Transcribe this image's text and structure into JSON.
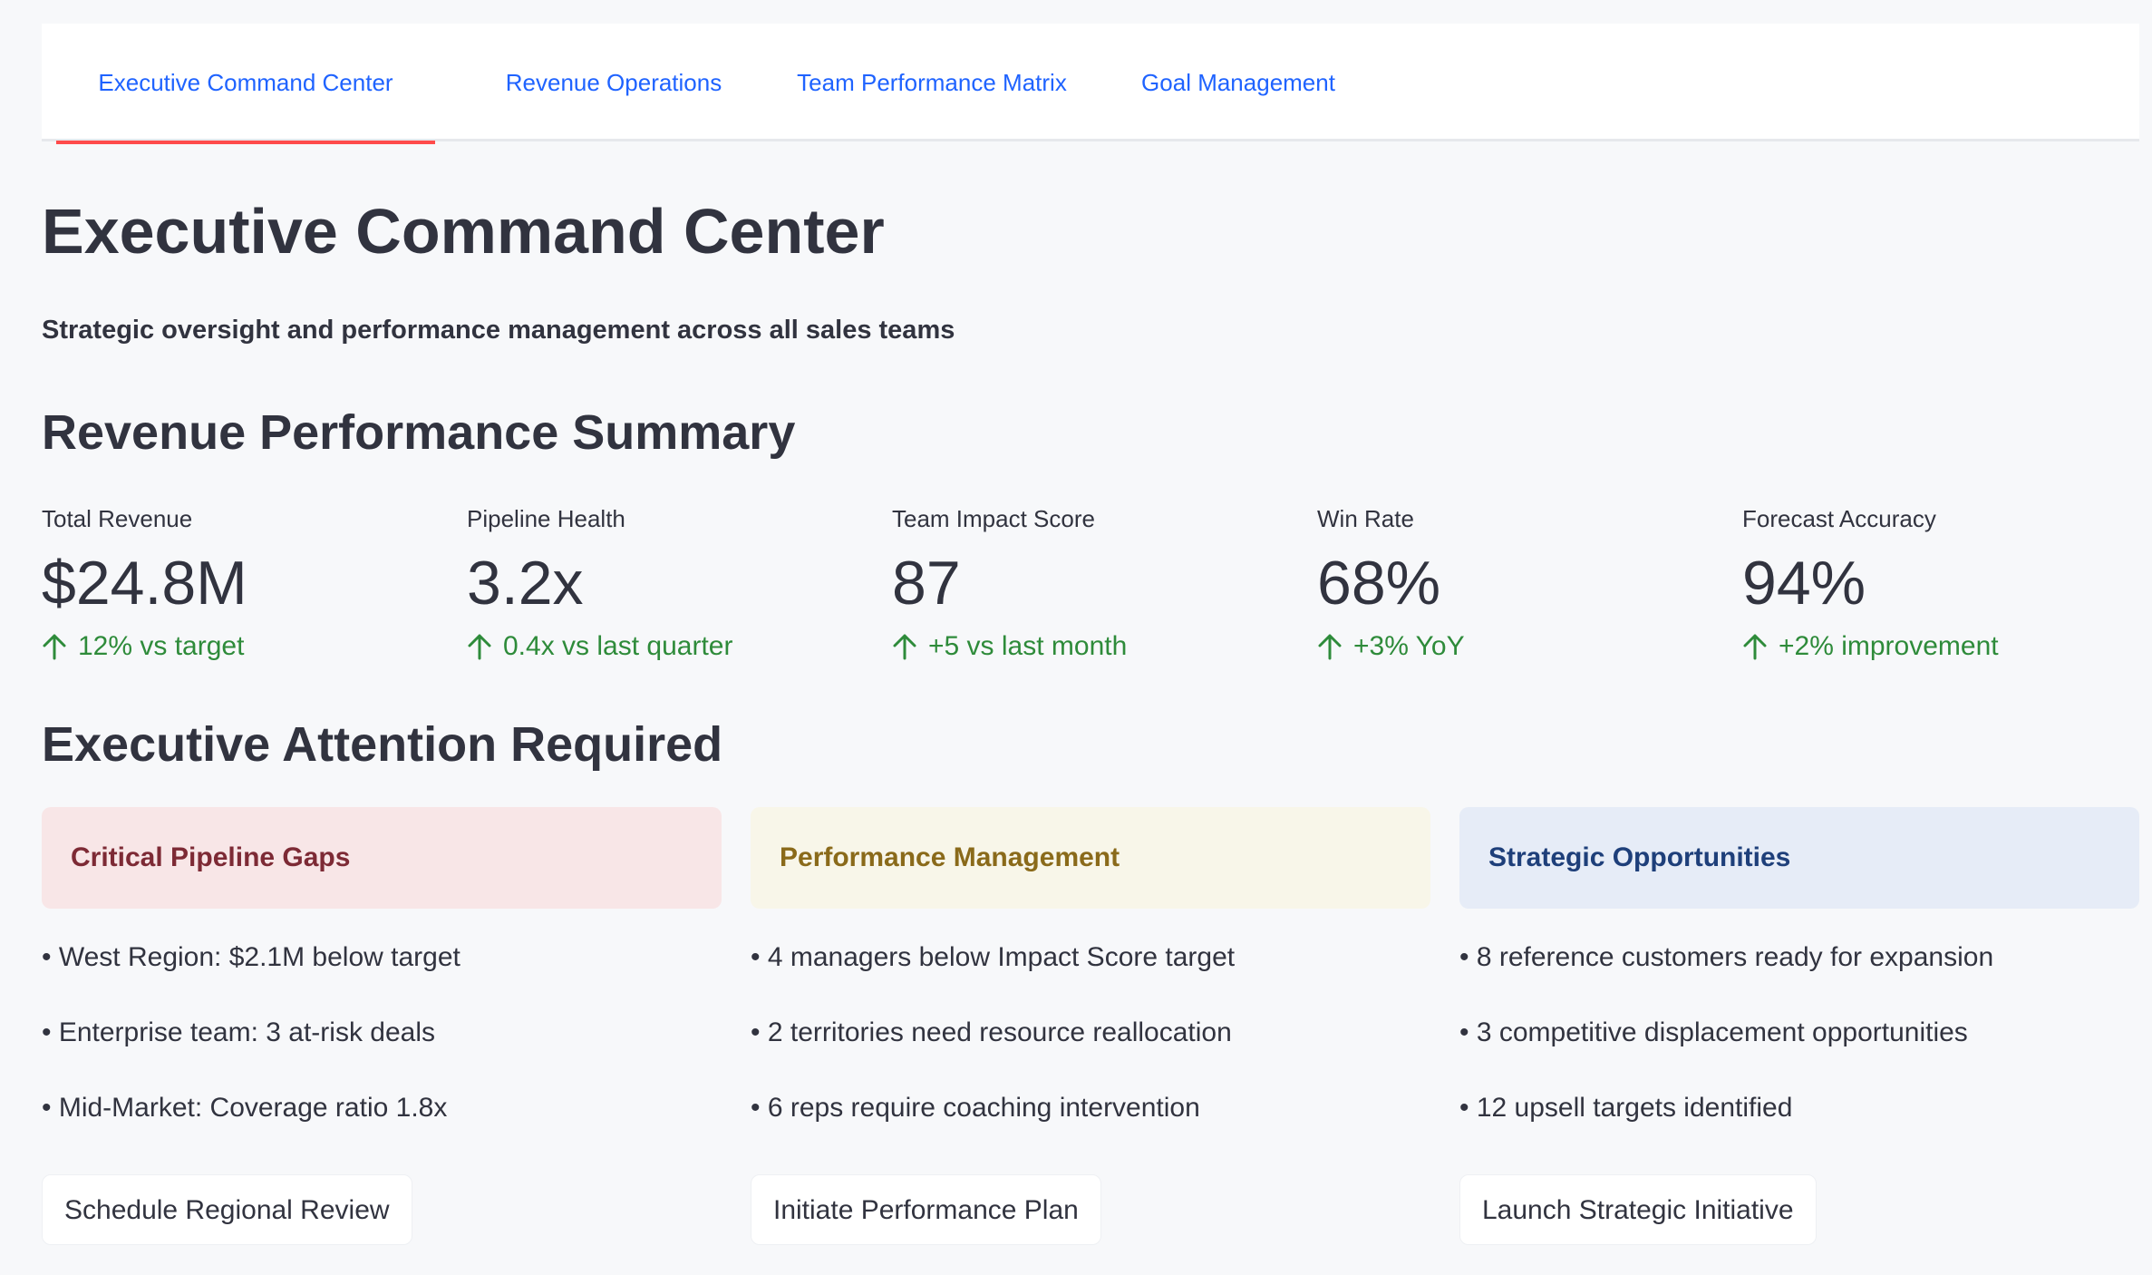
{
  "tabs": [
    {
      "label": "Executive Command Center",
      "active": true
    },
    {
      "label": "Revenue Operations",
      "active": false
    },
    {
      "label": "Team Performance Matrix",
      "active": false
    },
    {
      "label": "Goal Management",
      "active": false
    }
  ],
  "header": {
    "title": "Executive Command Center",
    "subtitle": "Strategic oversight and performance management across all sales teams"
  },
  "summary": {
    "title": "Revenue Performance Summary",
    "metrics": [
      {
        "label": "Total Revenue",
        "value": "$24.8M",
        "delta": "12% vs target",
        "icon": "arrow-up-icon"
      },
      {
        "label": "Pipeline Health",
        "value": "3.2x",
        "delta": "0.4x vs last quarter",
        "icon": "arrow-up-icon"
      },
      {
        "label": "Team Impact Score",
        "value": "87",
        "delta": "+5 vs last month",
        "icon": "arrow-up-icon"
      },
      {
        "label": "Win Rate",
        "value": "68%",
        "delta": "+3% YoY",
        "icon": "arrow-up-icon"
      },
      {
        "label": "Forecast Accuracy",
        "value": "94%",
        "delta": "+2% improvement",
        "icon": "arrow-up-icon"
      }
    ]
  },
  "attention": {
    "title": "Executive Attention Required",
    "columns": [
      {
        "header": "Critical Pipeline Gaps",
        "items": [
          "• West Region: $2.1M below target",
          "• Enterprise team: 3 at-risk deals",
          "• Mid-Market: Coverage ratio 1.8x"
        ],
        "button": "Schedule Regional Review"
      },
      {
        "header": "Performance Management",
        "items": [
          "• 4 managers below Impact Score target",
          "• 2 territories need resource reallocation",
          "• 6 reps require coaching intervention"
        ],
        "button": "Initiate Performance Plan"
      },
      {
        "header": "Strategic Opportunities",
        "items": [
          "• 8 reference customers ready for expansion",
          "• 3 competitive displacement opportunities",
          "• 12 upsell targets identified"
        ],
        "button": "Launch Strategic Initiative"
      }
    ]
  },
  "colors": {
    "tab_text": "#1f63ff",
    "tab_active_indicator": "#ff4b4b",
    "delta_positive": "#2e8b3a",
    "error_bg": "#f8e6e7",
    "warning_bg": "#f8f6e9",
    "info_bg": "#e6ecf7"
  }
}
